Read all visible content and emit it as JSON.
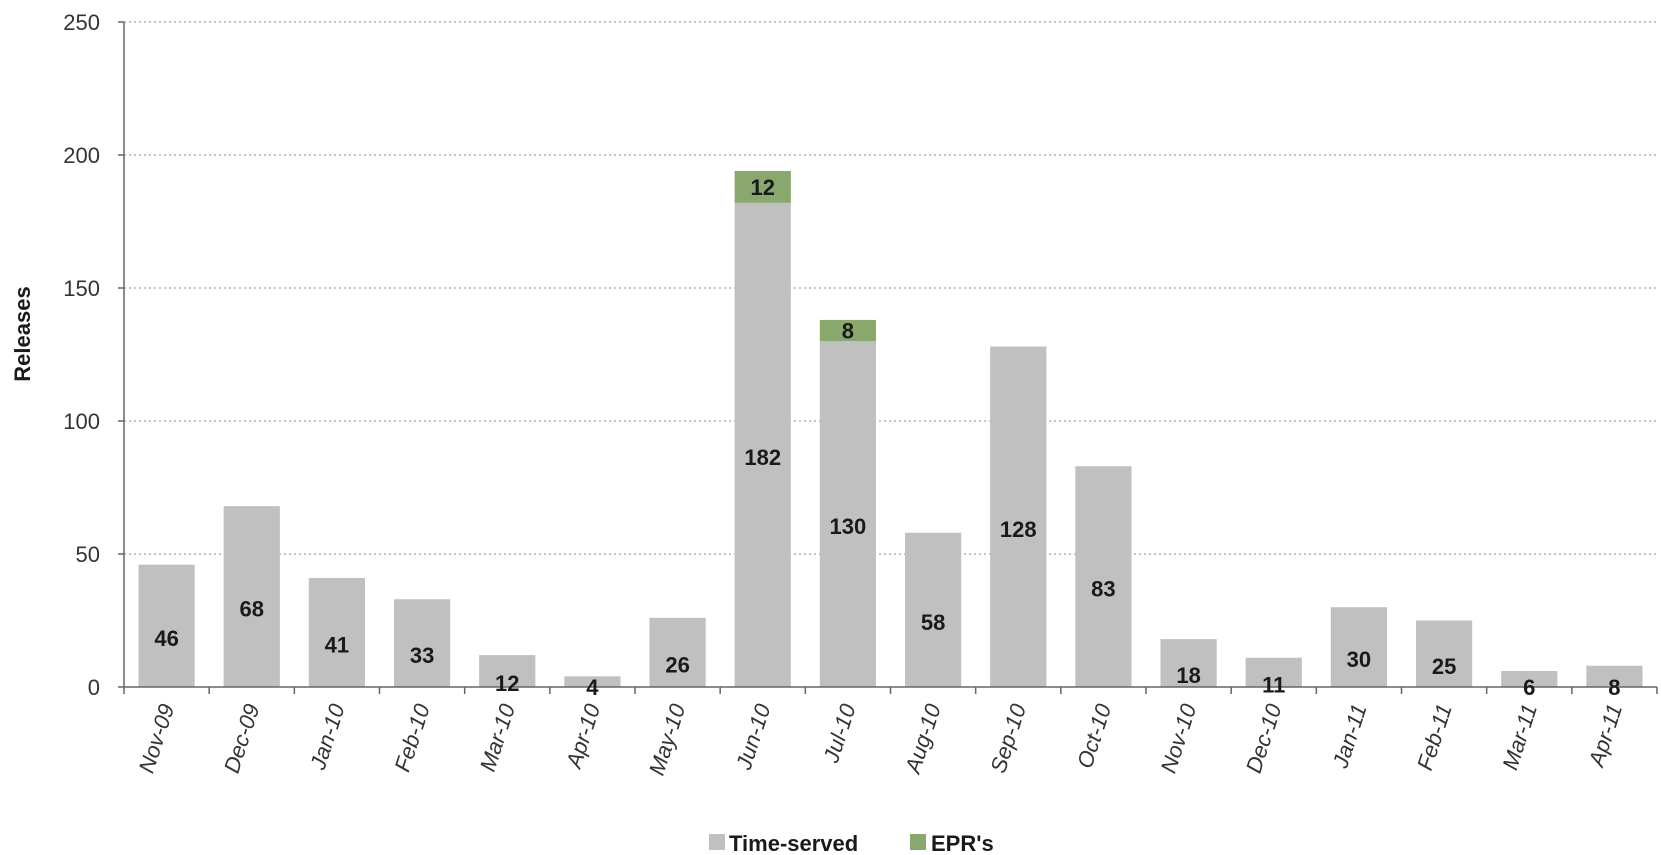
{
  "chart_data": {
    "type": "bar",
    "stacked": true,
    "categories": [
      "Nov-09",
      "Dec-09",
      "Jan-10",
      "Feb-10",
      "Mar-10",
      "Apr-10",
      "May-10",
      "Jun-10",
      "Jul-10",
      "Aug-10",
      "Sep-10",
      "Oct-10",
      "Nov-10",
      "Dec-10",
      "Jan-11",
      "Feb-11",
      "Mar-11",
      "Apr-11"
    ],
    "series": [
      {
        "name": "Time-served",
        "color": "#c0c0c0",
        "values": [
          46,
          68,
          41,
          33,
          12,
          4,
          26,
          182,
          130,
          58,
          128,
          83,
          18,
          11,
          30,
          25,
          6,
          8
        ]
      },
      {
        "name": "EPR's",
        "color": "#8aa86e",
        "values": [
          0,
          0,
          0,
          0,
          0,
          0,
          0,
          12,
          8,
          0,
          0,
          0,
          0,
          0,
          0,
          0,
          0,
          0
        ]
      }
    ],
    "title": "",
    "xlabel": "",
    "ylabel": "Releases",
    "ylim": [
      0,
      250
    ],
    "yticks": [
      0,
      50,
      100,
      150,
      200,
      250
    ],
    "grid": true,
    "legend_position": "bottom"
  }
}
